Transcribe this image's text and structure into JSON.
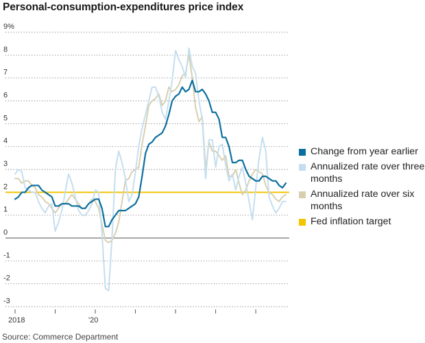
{
  "title": "Personal-consumption-expenditures price index",
  "source": "Source: Commerce Department",
  "colors": {
    "yoy": "#0b6e9e",
    "three_month": "#c4def0",
    "six_month": "#d9cfae",
    "target": "#f2c500",
    "grid": "#7a7a7a"
  },
  "chart_data": {
    "type": "line",
    "title": "Personal-consumption-expenditures price index",
    "ylabel": "",
    "xlabel": "",
    "ylim": [
      -3,
      9
    ],
    "y_ticks": [
      {
        "value": 9,
        "label": "9%"
      },
      {
        "value": 8,
        "label": "8"
      },
      {
        "value": 7,
        "label": "7"
      },
      {
        "value": 6,
        "label": "6"
      },
      {
        "value": 5,
        "label": "5"
      },
      {
        "value": 4,
        "label": "4"
      },
      {
        "value": 3,
        "label": "3"
      },
      {
        "value": 2,
        "label": "2"
      },
      {
        "value": 1,
        "label": "1"
      },
      {
        "value": 0,
        "label": "0"
      },
      {
        "value": -1,
        "label": "-1"
      },
      {
        "value": -2,
        "label": "-2"
      },
      {
        "value": -3,
        "label": "-3"
      }
    ],
    "x_ticks": [
      {
        "value": "2018-01",
        "label": "2018"
      },
      {
        "value": "2019-01",
        "label": ""
      },
      {
        "value": "2020-01",
        "label": "'20"
      },
      {
        "value": "2021-01",
        "label": ""
      },
      {
        "value": "2022-01",
        "label": ""
      },
      {
        "value": "2023-01",
        "label": ""
      },
      {
        "value": "2024-01",
        "label": ""
      }
    ],
    "x": [
      "2018-01",
      "2018-02",
      "2018-03",
      "2018-04",
      "2018-05",
      "2018-06",
      "2018-07",
      "2018-08",
      "2018-09",
      "2018-10",
      "2018-11",
      "2018-12",
      "2019-01",
      "2019-02",
      "2019-03",
      "2019-04",
      "2019-05",
      "2019-06",
      "2019-07",
      "2019-08",
      "2019-09",
      "2019-10",
      "2019-11",
      "2019-12",
      "2020-01",
      "2020-02",
      "2020-03",
      "2020-04",
      "2020-05",
      "2020-06",
      "2020-07",
      "2020-08",
      "2020-09",
      "2020-10",
      "2020-11",
      "2020-12",
      "2021-01",
      "2021-02",
      "2021-03",
      "2021-04",
      "2021-05",
      "2021-06",
      "2021-07",
      "2021-08",
      "2021-09",
      "2021-10",
      "2021-11",
      "2021-12",
      "2022-01",
      "2022-02",
      "2022-03",
      "2022-04",
      "2022-05",
      "2022-06",
      "2022-07",
      "2022-08",
      "2022-09",
      "2022-10",
      "2022-11",
      "2022-12",
      "2023-01",
      "2023-02",
      "2023-03",
      "2023-04",
      "2023-05",
      "2023-06",
      "2023-07",
      "2023-08",
      "2023-09",
      "2023-10",
      "2023-11",
      "2023-12",
      "2024-01",
      "2024-02",
      "2024-03",
      "2024-04",
      "2024-05",
      "2024-06",
      "2024-07",
      "2024-08",
      "2024-09",
      "2024-10"
    ],
    "series": [
      {
        "name": "Change from year earlier",
        "color": "#0b6e9e",
        "width": 2.2,
        "values": [
          1.7,
          1.8,
          2.0,
          2.0,
          2.2,
          2.3,
          2.3,
          2.3,
          2.1,
          2.0,
          1.9,
          1.8,
          1.4,
          1.4,
          1.5,
          1.5,
          1.5,
          1.4,
          1.4,
          1.4,
          1.3,
          1.3,
          1.5,
          1.6,
          1.7,
          1.7,
          1.3,
          0.5,
          0.5,
          0.8,
          1.0,
          1.2,
          1.2,
          1.2,
          1.3,
          1.4,
          1.5,
          1.8,
          2.7,
          3.7,
          4.1,
          4.2,
          4.4,
          4.5,
          4.6,
          4.9,
          5.4,
          6.0,
          6.2,
          6.3,
          6.6,
          6.4,
          6.5,
          6.9,
          6.4,
          6.4,
          6.5,
          6.3,
          6.0,
          5.5,
          5.5,
          5.2,
          4.4,
          4.4,
          4.0,
          3.3,
          3.3,
          3.4,
          3.4,
          3.0,
          2.7,
          2.6,
          2.5,
          2.5,
          2.7,
          2.7,
          2.6,
          2.5,
          2.5,
          2.3,
          2.2,
          2.4
        ]
      },
      {
        "name": "Annualized rate over three months",
        "color": "#c4def0",
        "width": 2.0,
        "values": [
          2.8,
          3.0,
          2.9,
          2.2,
          2.1,
          2.0,
          2.0,
          1.6,
          1.3,
          1.1,
          1.4,
          1.5,
          0.3,
          0.7,
          1.2,
          2.0,
          2.8,
          2.4,
          1.8,
          1.2,
          1.0,
          1.0,
          1.2,
          1.5,
          2.1,
          2.0,
          0.2,
          -2.2,
          -2.3,
          0.0,
          3.0,
          3.8,
          3.3,
          2.6,
          1.6,
          1.9,
          2.9,
          4.0,
          4.8,
          5.4,
          6.0,
          6.6,
          6.6,
          6.2,
          5.5,
          5.2,
          6.0,
          6.9,
          8.2,
          7.8,
          7.5,
          7.0,
          8.3,
          7.5,
          7.2,
          6.0,
          5.2,
          2.6,
          4.3,
          4.3,
          3.1,
          4.0,
          4.1,
          3.2,
          2.5,
          2.8,
          2.1,
          2.7,
          3.1,
          2.4,
          1.6,
          0.8,
          2.2,
          3.5,
          4.4,
          3.8,
          1.8,
          1.4,
          1.1,
          1.3,
          1.6,
          1.6
        ]
      },
      {
        "name": "Annualized rate over six months",
        "color": "#d9cfae",
        "width": 2.0,
        "values": [
          2.6,
          2.6,
          2.4,
          2.5,
          2.5,
          2.3,
          2.2,
          1.9,
          1.8,
          1.6,
          1.5,
          1.3,
          1.1,
          1.3,
          1.5,
          1.5,
          1.7,
          1.9,
          1.7,
          1.5,
          1.3,
          1.3,
          1.5,
          1.7,
          1.6,
          1.3,
          0.6,
          -0.1,
          -0.2,
          -0.1,
          0.2,
          0.7,
          1.6,
          2.5,
          2.6,
          2.9,
          3.0,
          3.1,
          4.1,
          4.9,
          5.8,
          6.0,
          6.1,
          6.3,
          5.8,
          6.0,
          6.6,
          6.4,
          6.5,
          6.7,
          7.1,
          7.2,
          8.0,
          7.0,
          5.7,
          5.1,
          5.3,
          3.0,
          4.2,
          3.8,
          3.8,
          3.6,
          3.4,
          3.6,
          2.7,
          2.7,
          3.0,
          2.4,
          1.9,
          2.1,
          2.5,
          2.8,
          3.0,
          2.9,
          2.8,
          2.3,
          2.0,
          1.9,
          1.7,
          1.6,
          1.8,
          1.9
        ]
      },
      {
        "name": "Fed inflation target",
        "color": "#f2c500",
        "width": 2.0,
        "constant": 2.0
      }
    ],
    "legend": {
      "position": "right",
      "order": [
        0,
        1,
        2,
        3
      ]
    },
    "grid": true
  }
}
